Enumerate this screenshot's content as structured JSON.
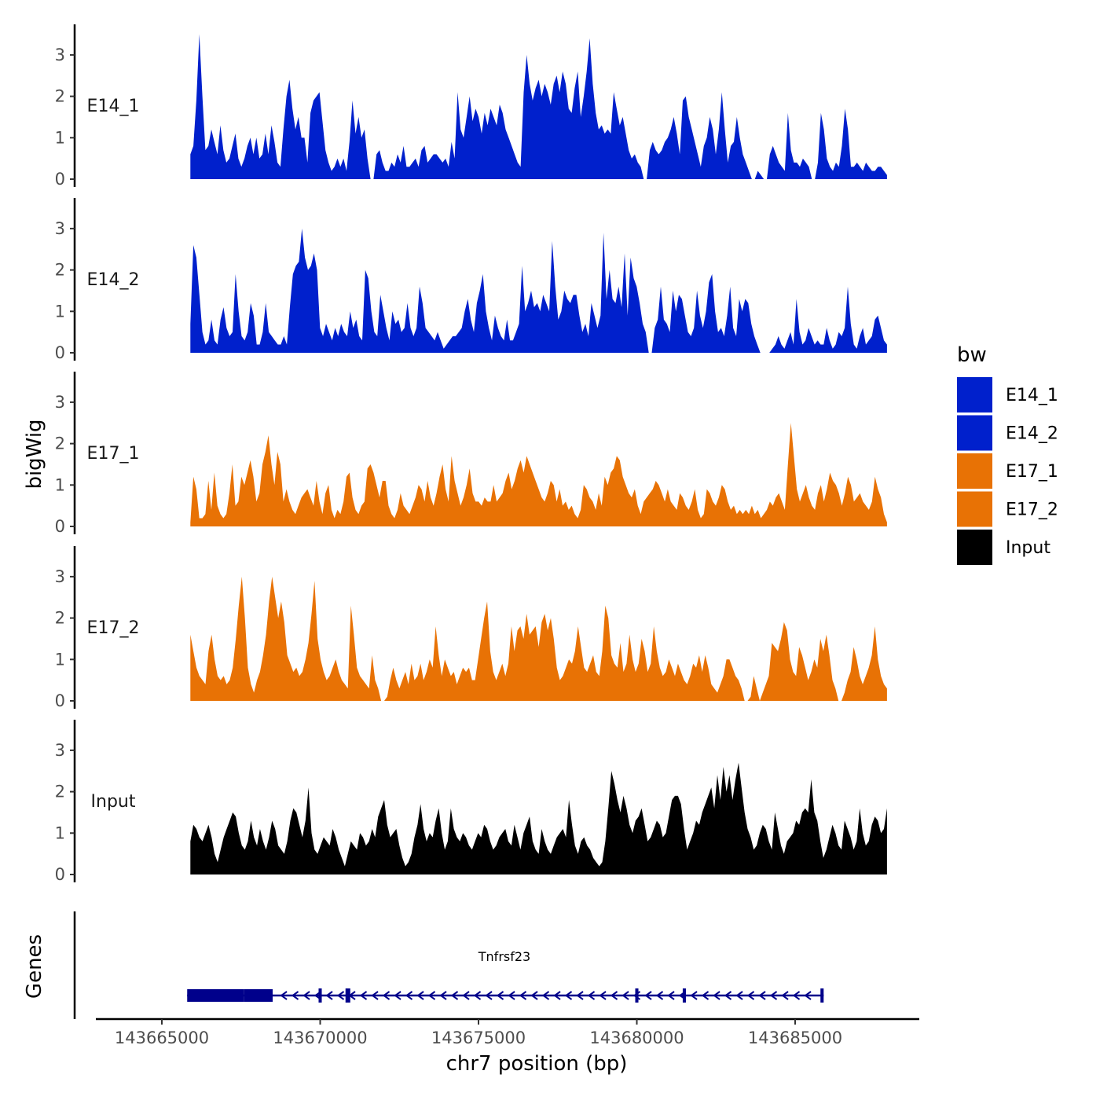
{
  "chart_data": {
    "type": "area",
    "chromosome": "chr7",
    "xlabel": "chr7 position (bp)",
    "ylabel": "bigWig",
    "genes_label": "Genes",
    "xlim": [
      143664000,
      143688000
    ],
    "signal_range": [
      143665900,
      143687900
    ],
    "ylim": [
      0,
      3.7
    ],
    "yticks": [
      0,
      1,
      2,
      3
    ],
    "xticks": [
      143665000,
      143670000,
      143675000,
      143680000,
      143685000
    ],
    "xtick_labels": [
      "143665000",
      "143670000",
      "143675000",
      "143680000",
      "143685000"
    ],
    "legend": {
      "title": "bw",
      "entries": [
        {
          "name": "E14_1",
          "color": "#0020CC"
        },
        {
          "name": "E14_2",
          "color": "#0020CC"
        },
        {
          "name": "E17_1",
          "color": "#E87205"
        },
        {
          "name": "E17_2",
          "color": "#E87205"
        },
        {
          "name": "Input",
          "color": "#000000"
        }
      ]
    },
    "series": [
      {
        "name": "E14_1",
        "color": "#0020CC",
        "values": [
          0.6,
          0.8,
          1.9,
          3.5,
          2.0,
          0.7,
          0.8,
          1.2,
          0.9,
          0.6,
          1.3,
          0.7,
          0.4,
          0.5,
          0.8,
          1.1,
          0.5,
          0.3,
          0.5,
          0.8,
          1.0,
          0.6,
          1.0,
          0.5,
          0.6,
          1.1,
          0.6,
          1.3,
          0.9,
          0.4,
          0.3,
          1.2,
          2.0,
          2.4,
          1.7,
          1.2,
          1.5,
          1.0,
          1.0,
          0.4,
          1.6,
          1.9,
          2.0,
          2.1,
          1.4,
          0.7,
          0.4,
          0.2,
          0.3,
          0.5,
          0.3,
          0.5,
          0.2,
          0.9,
          1.9,
          1.1,
          1.5,
          1.0,
          1.2,
          0.5,
          0,
          0,
          0.6,
          0.7,
          0.4,
          0.2,
          0.2,
          0.4,
          0.3,
          0.6,
          0.4,
          0.8,
          0.3,
          0.3,
          0.4,
          0.5,
          0.3,
          0.7,
          0.8,
          0.4,
          0.5,
          0.6,
          0.6,
          0.5,
          0.4,
          0.5,
          0.3,
          0.9,
          0.5,
          2.1,
          1.2,
          1.0,
          1.5,
          2.0,
          1.4,
          1.7,
          1.5,
          1.1,
          1.6,
          1.3,
          1.7,
          1.5,
          1.3,
          1.8,
          1.6,
          1.2,
          1.0,
          0.8,
          0.6,
          0.4,
          0.3,
          2.1,
          3.0,
          2.3,
          1.9,
          2.2,
          2.4,
          2.0,
          2.3,
          2.1,
          1.8,
          2.3,
          2.5,
          2.1,
          2.6,
          2.3,
          1.7,
          1.6,
          2.2,
          2.6,
          1.5,
          2.0,
          2.6,
          3.4,
          2.3,
          1.6,
          1.2,
          1.3,
          1.1,
          1.2,
          1.1,
          2.1,
          1.7,
          1.3,
          1.5,
          1.1,
          0.7,
          0.5,
          0.6,
          0.4,
          0.3,
          0,
          0,
          0.7,
          0.9,
          0.7,
          0.6,
          0.7,
          0.9,
          1.0,
          1.2,
          1.5,
          1.1,
          0.6,
          1.9,
          2.0,
          1.5,
          1.2,
          0.9,
          0.6,
          0.3,
          0.8,
          1.0,
          1.5,
          1.2,
          0.6,
          1.2,
          2.1,
          1.2,
          0.4,
          0.8,
          0.9,
          1.5,
          1.0,
          0.6,
          0.4,
          0.2,
          0,
          0,
          0.2,
          0.1,
          0,
          0,
          0.6,
          0.8,
          0.6,
          0.4,
          0.3,
          0.2,
          1.6,
          0.7,
          0.4,
          0.4,
          0.3,
          0.5,
          0.4,
          0.3,
          0,
          0,
          0.4,
          1.6,
          1.2,
          0.5,
          0.3,
          0.2,
          0.4,
          0.3,
          0.8,
          1.7,
          1.2,
          0.3,
          0.3,
          0.4,
          0.3,
          0.2,
          0.4,
          0.3,
          0.2,
          0.2,
          0.3,
          0.3,
          0.2,
          0.1
        ]
      },
      {
        "name": "E14_2",
        "color": "#0020CC",
        "values": [
          0.7,
          2.6,
          2.3,
          1.4,
          0.5,
          0.2,
          0.3,
          0.8,
          0.3,
          0.2,
          0.8,
          1.1,
          0.6,
          0.4,
          0.5,
          1.9,
          1.0,
          0.4,
          0.3,
          0.5,
          1.2,
          0.9,
          0.2,
          0.2,
          0.5,
          1.2,
          0.5,
          0.4,
          0.3,
          0.2,
          0.2,
          0.4,
          0.2,
          1.1,
          1.9,
          2.1,
          2.2,
          3.0,
          2.3,
          2.0,
          2.1,
          2.4,
          2.0,
          0.6,
          0.4,
          0.7,
          0.5,
          0.3,
          0.6,
          0.4,
          0.7,
          0.5,
          0.4,
          1.0,
          0.6,
          0.8,
          0.4,
          0.3,
          2.0,
          1.8,
          1.0,
          0.5,
          0.4,
          1.4,
          1.0,
          0.6,
          0.3,
          1.0,
          0.7,
          0.8,
          0.5,
          0.6,
          1.2,
          0.6,
          0.4,
          0.6,
          1.6,
          1.2,
          0.6,
          0.5,
          0.4,
          0.3,
          0.5,
          0.3,
          0.1,
          0.2,
          0.3,
          0.4,
          0.4,
          0.5,
          0.6,
          1.0,
          1.3,
          0.8,
          0.5,
          1.2,
          1.5,
          1.9,
          1.0,
          0.6,
          0.3,
          0.9,
          0.6,
          0.4,
          0.3,
          0.8,
          0.3,
          0.3,
          0.5,
          0.7,
          2.1,
          1.0,
          1.2,
          1.5,
          1.1,
          1.2,
          1.0,
          1.4,
          1.2,
          1.0,
          2.7,
          1.6,
          0.8,
          1.0,
          1.5,
          1.3,
          1.2,
          1.4,
          1.4,
          0.9,
          0.5,
          0.7,
          0.4,
          1.2,
          0.9,
          0.6,
          0.9,
          2.9,
          1.3,
          2.0,
          1.3,
          1.2,
          1.6,
          1.1,
          2.4,
          0.9,
          2.3,
          1.8,
          1.6,
          1.2,
          0.7,
          0.5,
          0,
          0,
          0.6,
          0.8,
          1.6,
          0.8,
          0.7,
          0.5,
          1.5,
          1.0,
          1.4,
          1.3,
          0.9,
          0.5,
          0.4,
          0.6,
          1.5,
          0.9,
          0.6,
          1.0,
          1.7,
          1.9,
          1.0,
          0.5,
          0.6,
          0.4,
          0.9,
          1.6,
          0.6,
          0.4,
          1.3,
          1.0,
          1.3,
          1.2,
          0.7,
          0.4,
          0.2,
          0,
          0,
          0,
          0,
          0.1,
          0.2,
          0.4,
          0.2,
          0.1,
          0.3,
          0.5,
          0.2,
          1.3,
          0.5,
          0.2,
          0.3,
          0.6,
          0.4,
          0.2,
          0.3,
          0.2,
          0.2,
          0.6,
          0.3,
          0.1,
          0.2,
          0.5,
          0.4,
          0.6,
          1.6,
          0.7,
          0.2,
          0.1,
          0.4,
          0.6,
          0.2,
          0.3,
          0.4,
          0.8,
          0.9,
          0.6,
          0.3,
          0.2
        ]
      },
      {
        "name": "E17_1",
        "color": "#E87205",
        "values": [
          0.1,
          1.2,
          0.9,
          0.2,
          0.2,
          0.3,
          1.1,
          0.4,
          1.3,
          0.5,
          0.3,
          0.2,
          0.3,
          0.8,
          1.5,
          0.5,
          0.6,
          1.2,
          1.0,
          1.3,
          1.6,
          1.2,
          0.6,
          0.8,
          1.5,
          1.8,
          2.2,
          1.5,
          1.0,
          1.8,
          1.5,
          0.6,
          0.9,
          0.6,
          0.4,
          0.3,
          0.5,
          0.7,
          0.8,
          0.9,
          0.7,
          0.5,
          1.1,
          0.6,
          0.3,
          0.8,
          1.0,
          0.4,
          0.2,
          0.4,
          0.3,
          0.6,
          1.2,
          1.3,
          0.7,
          0.4,
          0.3,
          0.5,
          0.6,
          1.4,
          1.5,
          1.3,
          1.0,
          0.7,
          1.1,
          1.1,
          0.5,
          0.3,
          0.2,
          0.4,
          0.8,
          0.5,
          0.4,
          0.3,
          0.5,
          0.7,
          1.0,
          0.9,
          0.6,
          1.1,
          0.7,
          0.5,
          0.8,
          1.2,
          1.5,
          0.9,
          0.6,
          1.7,
          1.1,
          0.8,
          0.5,
          0.7,
          1.0,
          1.4,
          0.8,
          0.6,
          0.6,
          0.5,
          0.7,
          0.6,
          0.6,
          1.0,
          0.6,
          0.7,
          0.8,
          1.1,
          1.3,
          0.9,
          1.1,
          1.4,
          1.6,
          1.3,
          1.7,
          1.5,
          1.3,
          1.1,
          0.9,
          0.7,
          0.6,
          0.8,
          1.1,
          1.0,
          0.6,
          0.9,
          0.5,
          0.6,
          0.4,
          0.5,
          0.3,
          0.2,
          0.4,
          1.0,
          0.9,
          0.7,
          0.6,
          0.4,
          0.8,
          0.5,
          1.2,
          1.0,
          1.3,
          1.4,
          1.7,
          1.6,
          1.2,
          1.0,
          0.8,
          0.7,
          0.9,
          0.5,
          0.3,
          0.6,
          0.7,
          0.8,
          0.9,
          1.1,
          1.0,
          0.8,
          0.6,
          0.9,
          0.6,
          0.5,
          0.4,
          0.8,
          0.7,
          0.5,
          0.4,
          0.6,
          0.9,
          0.4,
          0.2,
          0.3,
          0.9,
          0.8,
          0.6,
          0.5,
          0.7,
          1.0,
          0.9,
          0.6,
          0.4,
          0.5,
          0.3,
          0.4,
          0.3,
          0.4,
          0.3,
          0.5,
          0.3,
          0.4,
          0.2,
          0.3,
          0.4,
          0.6,
          0.5,
          0.7,
          0.8,
          0.6,
          0.4,
          1.5,
          2.5,
          1.7,
          0.9,
          0.6,
          0.8,
          1.0,
          0.7,
          0.5,
          0.4,
          0.8,
          1.0,
          0.6,
          0.9,
          1.3,
          1.1,
          1.0,
          0.8,
          0.5,
          0.8,
          1.2,
          1.0,
          0.6,
          0.7,
          0.8,
          0.6,
          0.5,
          0.4,
          0.6,
          1.2,
          0.9,
          0.7,
          0.3,
          0.1
        ]
      },
      {
        "name": "E17_2",
        "color": "#E87205",
        "values": [
          1.6,
          1.2,
          0.8,
          0.6,
          0.5,
          0.4,
          1.2,
          1.6,
          1.0,
          0.6,
          0.5,
          0.6,
          0.4,
          0.5,
          0.8,
          1.5,
          2.3,
          3.0,
          2.0,
          0.8,
          0.4,
          0.2,
          0.5,
          0.7,
          1.1,
          1.6,
          2.4,
          3.0,
          2.5,
          2.0,
          2.4,
          1.9,
          1.1,
          0.9,
          0.7,
          0.8,
          0.6,
          0.7,
          1.0,
          1.4,
          2.1,
          2.9,
          1.5,
          1.0,
          0.7,
          0.5,
          0.6,
          0.8,
          1.0,
          0.7,
          0.5,
          0.4,
          0.3,
          2.3,
          1.6,
          0.8,
          0.6,
          0.5,
          0.4,
          0.3,
          1.1,
          0.5,
          0.3,
          0,
          0,
          0.1,
          0.5,
          0.8,
          0.5,
          0.3,
          0.5,
          0.7,
          0.4,
          0.9,
          0.5,
          0.6,
          0.9,
          0.5,
          0.7,
          1.0,
          0.8,
          1.8,
          1.1,
          0.6,
          1.0,
          0.8,
          0.6,
          0.7,
          0.4,
          0.6,
          0.8,
          0.7,
          0.8,
          0.5,
          0.5,
          1.0,
          1.5,
          2.0,
          2.4,
          1.2,
          0.7,
          0.5,
          0.7,
          0.9,
          0.6,
          0.9,
          1.8,
          1.2,
          1.7,
          1.8,
          1.5,
          2.1,
          1.6,
          1.7,
          1.8,
          1.3,
          1.9,
          2.1,
          1.7,
          2.0,
          1.5,
          0.8,
          0.5,
          0.6,
          0.8,
          1.0,
          0.9,
          1.2,
          1.8,
          1.3,
          0.8,
          0.7,
          0.9,
          1.1,
          0.7,
          0.6,
          1.2,
          2.3,
          2.0,
          1.1,
          0.9,
          0.8,
          1.4,
          0.7,
          0.9,
          1.6,
          1.0,
          0.7,
          0.9,
          1.5,
          1.2,
          0.7,
          0.9,
          1.8,
          1.2,
          0.8,
          0.6,
          0.7,
          1.0,
          0.8,
          0.6,
          0.9,
          0.7,
          0.5,
          0.4,
          0.6,
          0.9,
          0.8,
          1.1,
          0.7,
          1.1,
          0.8,
          0.4,
          0.3,
          0.2,
          0.4,
          0.6,
          1.0,
          1.0,
          0.8,
          0.6,
          0.5,
          0.3,
          0,
          0,
          0.1,
          0.6,
          0.3,
          0,
          0.2,
          0.4,
          0.6,
          1.4,
          1.3,
          1.2,
          1.5,
          1.9,
          1.7,
          1.0,
          0.7,
          0.6,
          1.3,
          1.1,
          0.8,
          0.5,
          0.7,
          1.0,
          0.8,
          1.5,
          1.2,
          1.6,
          1.1,
          0.5,
          0.3,
          0,
          0,
          0.2,
          0.5,
          0.7,
          1.3,
          1.0,
          0.6,
          0.4,
          0.6,
          0.8,
          1.1,
          1.8,
          1.0,
          0.6,
          0.4,
          0.3
        ]
      },
      {
        "name": "Input",
        "color": "#000000",
        "values": [
          0.8,
          1.2,
          1.1,
          0.9,
          0.8,
          1.0,
          1.2,
          0.9,
          0.5,
          0.3,
          0.6,
          0.9,
          1.1,
          1.3,
          1.5,
          1.4,
          1.0,
          0.7,
          0.6,
          0.8,
          1.3,
          0.9,
          0.7,
          1.1,
          0.8,
          0.6,
          0.9,
          1.3,
          1.1,
          0.7,
          0.6,
          0.5,
          0.8,
          1.3,
          1.6,
          1.5,
          1.2,
          0.9,
          1.3,
          2.1,
          1.0,
          0.6,
          0.5,
          0.7,
          0.9,
          0.8,
          0.7,
          1.1,
          0.9,
          0.6,
          0.4,
          0.2,
          0.5,
          0.8,
          0.7,
          0.6,
          1.0,
          0.9,
          0.7,
          0.8,
          1.1,
          0.9,
          1.4,
          1.6,
          1.8,
          1.2,
          0.9,
          1.0,
          1.1,
          0.7,
          0.4,
          0.2,
          0.3,
          0.5,
          0.9,
          1.2,
          1.7,
          1.1,
          0.8,
          1.0,
          0.9,
          1.3,
          1.6,
          1.0,
          0.6,
          0.8,
          1.6,
          1.1,
          0.9,
          0.8,
          1.0,
          0.9,
          0.7,
          0.6,
          0.8,
          1.0,
          0.9,
          1.2,
          1.1,
          0.8,
          0.6,
          0.7,
          0.9,
          1.0,
          1.1,
          0.8,
          0.7,
          1.2,
          0.9,
          0.6,
          1.0,
          1.2,
          1.4,
          0.8,
          0.6,
          0.5,
          1.1,
          0.8,
          0.6,
          0.5,
          0.7,
          0.9,
          1.0,
          1.1,
          0.9,
          1.8,
          1.2,
          0.7,
          0.5,
          0.8,
          0.9,
          0.7,
          0.6,
          0.4,
          0.3,
          0.2,
          0.3,
          0.8,
          1.6,
          2.5,
          2.2,
          1.8,
          1.5,
          1.9,
          1.6,
          1.2,
          1.0,
          1.3,
          1.4,
          1.6,
          1.2,
          0.8,
          0.9,
          1.1,
          1.3,
          1.2,
          0.9,
          1.0,
          1.4,
          1.8,
          1.9,
          1.9,
          1.7,
          1.1,
          0.6,
          0.8,
          1.0,
          1.3,
          1.2,
          1.5,
          1.7,
          1.9,
          2.1,
          1.6,
          2.4,
          1.8,
          2.6,
          2.0,
          2.4,
          1.8,
          2.3,
          2.7,
          2.1,
          1.5,
          1.1,
          0.9,
          0.6,
          0.7,
          1.0,
          1.2,
          1.1,
          0.8,
          0.6,
          1.5,
          1.1,
          0.7,
          0.5,
          0.8,
          0.9,
          1.0,
          1.3,
          1.2,
          1.5,
          1.6,
          1.5,
          2.3,
          1.5,
          1.3,
          0.8,
          0.4,
          0.6,
          0.9,
          1.2,
          1.0,
          0.7,
          0.6,
          1.3,
          1.1,
          0.9,
          0.6,
          0.8,
          1.6,
          1.0,
          0.7,
          0.8,
          1.2,
          1.4,
          1.3,
          1.0,
          1.1,
          1.6
        ]
      }
    ],
    "gene": {
      "name": "Tnfrsf23",
      "strand": "-",
      "start": 143665800,
      "end": 143685900,
      "exons": [
        [
          143665800,
          143667600
        ],
        [
          143667600,
          143668500
        ],
        [
          143669950,
          143670050
        ],
        [
          143670800,
          143670950
        ],
        [
          143679950,
          143680050
        ],
        [
          143681450,
          143681550
        ],
        [
          143685800,
          143685900
        ]
      ],
      "color": "#00008B"
    }
  }
}
